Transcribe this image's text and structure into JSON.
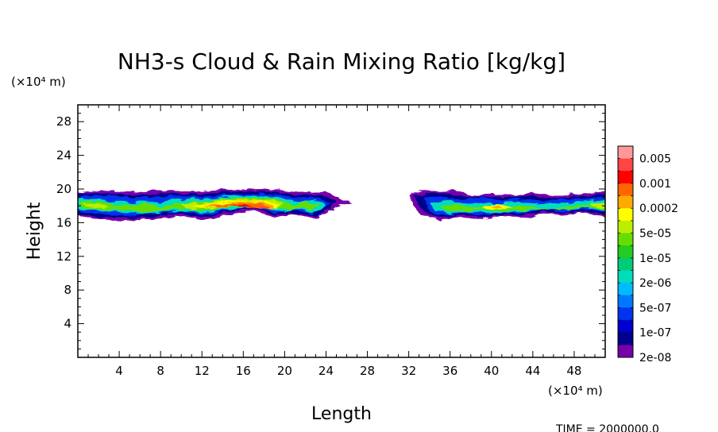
{
  "chart_data": {
    "type": "heatmap",
    "title": "NH3-s Cloud & Rain Mixing Ratio [kg/kg]",
    "xlabel": "Length",
    "ylabel": "Height",
    "x_unit": "(×10⁴ m)",
    "y_unit": "(×10⁴ m)",
    "xlim": [
      0,
      51
    ],
    "ylim": [
      0,
      30
    ],
    "xticks": [
      4,
      8,
      12,
      16,
      20,
      24,
      28,
      32,
      36,
      40,
      44,
      48
    ],
    "xtick_labels": [
      "4",
      "8",
      "12",
      "16",
      "20",
      "24",
      "28",
      "32",
      "36",
      "40",
      "44",
      "48"
    ],
    "yticks": [
      4,
      8,
      12,
      16,
      20,
      24,
      28
    ],
    "ytick_labels": [
      "4",
      "8",
      "12",
      "16",
      "20",
      "24",
      "28"
    ],
    "time_label": "TIME = 2000000.0",
    "colorbar": {
      "labels": [
        "0.005",
        "0.001",
        "0.0002",
        "5e-05",
        "1e-05",
        "2e-06",
        "5e-07",
        "1e-07",
        "2e-08"
      ],
      "colors": [
        "#ff9999",
        "#ff4444",
        "#ff0000",
        "#ff6600",
        "#ffaa00",
        "#ffff00",
        "#bbee00",
        "#66dd00",
        "#22cc22",
        "#00cc77",
        "#00ddbb",
        "#00bbff",
        "#0077ff",
        "#0033ee",
        "#0000cc",
        "#00008b",
        "#7700aa"
      ]
    },
    "series": [
      {
        "name": "cloud band (left)",
        "level_index": 16,
        "x": [
          0,
          26
        ],
        "y": [
          16.8,
          19.8
        ]
      },
      {
        "name": "cloud band (right)",
        "level_index": 16,
        "x": [
          32,
          51
        ],
        "y": [
          16.5,
          19.8
        ]
      },
      {
        "name": "high concentration cell",
        "level_index": 3,
        "x": [
          13,
          20
        ],
        "y": [
          17.5,
          19.2
        ]
      }
    ]
  }
}
